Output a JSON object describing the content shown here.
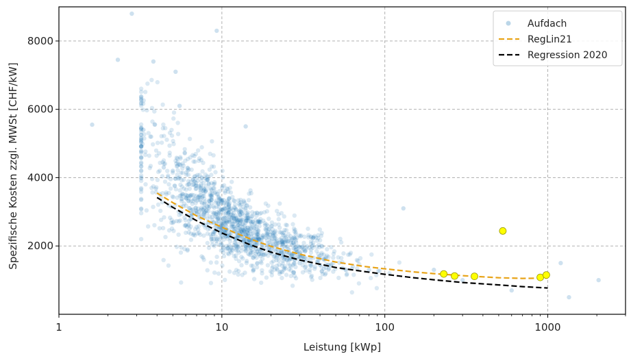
{
  "chart_data": {
    "type": "scatter",
    "xlabel": "Leistung [kWp]",
    "ylabel": "Spezifische Kosten zzgl. MWSt [CHF/kW]",
    "x_scale": "log",
    "xlim": [
      1,
      3000
    ],
    "ylim": [
      0,
      9000
    ],
    "x_ticks": [
      1,
      10,
      100,
      1000
    ],
    "x_tick_labels": [
      "1",
      "10",
      "100",
      "1000"
    ],
    "y_ticks": [
      2000,
      4000,
      6000,
      8000
    ],
    "y_tick_labels": [
      "2000",
      "4000",
      "6000",
      "8000"
    ],
    "grid": true,
    "legend_position": "top-right",
    "legend": [
      "Aufdach",
      "RegLin21",
      "Regression 2020"
    ],
    "colors": {
      "Aufdach": "#1f77b4",
      "RegLin21": "#e8a317",
      "Regression 2020": "#000000",
      "highlight": "#ffff00"
    },
    "series": [
      {
        "name": "Aufdach",
        "kind": "scatter",
        "sample_points": [
          [
            1.6,
            5550
          ],
          [
            2.3,
            7450
          ],
          [
            2.8,
            8800
          ],
          [
            3.3,
            5400
          ],
          [
            3.8,
            7400
          ],
          [
            4.4,
            4300
          ],
          [
            5.2,
            7100
          ],
          [
            5.5,
            6100
          ],
          [
            9.3,
            8300
          ],
          [
            14,
            5500
          ],
          [
            5,
            4200
          ],
          [
            6,
            3500
          ],
          [
            7,
            3000
          ],
          [
            8,
            2600
          ],
          [
            9,
            2400
          ],
          [
            10,
            2300
          ],
          [
            12,
            2100
          ],
          [
            14,
            2000
          ],
          [
            17,
            1900
          ],
          [
            20,
            1800
          ],
          [
            25,
            1600
          ],
          [
            30,
            1500
          ],
          [
            40,
            1450
          ],
          [
            55,
            1350
          ],
          [
            80,
            1300
          ],
          [
            130,
            3100
          ],
          [
            200,
            1300
          ],
          [
            300,
            1000
          ],
          [
            600,
            700
          ],
          [
            1200,
            1500
          ],
          [
            1350,
            500
          ],
          [
            2050,
            1000
          ]
        ]
      },
      {
        "name": "RegLin21",
        "kind": "line",
        "x": [
          4,
          5,
          7,
          10,
          15,
          20,
          30,
          50,
          75,
          100,
          150,
          200,
          300,
          500,
          700,
          1000
        ],
        "y": [
          3550,
          3270,
          2880,
          2550,
          2200,
          1990,
          1760,
          1530,
          1400,
          1330,
          1240,
          1190,
          1130,
          1070,
          1050,
          1060
        ]
      },
      {
        "name": "Regression 2020",
        "kind": "line",
        "x": [
          4,
          5,
          7,
          10,
          15,
          20,
          30,
          50,
          75,
          100,
          150,
          200,
          300,
          500,
          700,
          1000
        ],
        "y": [
          3420,
          3130,
          2740,
          2380,
          2030,
          1820,
          1590,
          1370,
          1250,
          1170,
          1070,
          1010,
          930,
          860,
          810,
          770
        ]
      },
      {
        "name": "",
        "kind": "highlight",
        "points": [
          [
            230,
            1180
          ],
          [
            268,
            1120
          ],
          [
            355,
            1110
          ],
          [
            530,
            2440
          ],
          [
            900,
            1080
          ],
          [
            980,
            1150
          ]
        ]
      }
    ]
  }
}
